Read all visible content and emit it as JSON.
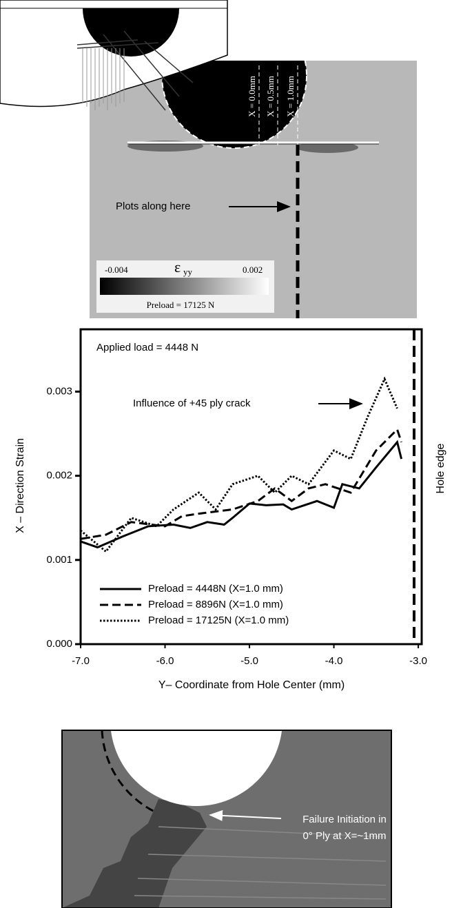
{
  "top_panel": {
    "x_labels": [
      "X = 0.0mm",
      "X = 0.5mm",
      "X = 1.0mm"
    ],
    "arrow_label": "Plots along here",
    "colorbar_min": "-0.004",
    "colorbar_symbol": "ε",
    "colorbar_subscript": "yy",
    "colorbar_max": "0.002",
    "preload": "Preload = 17125 N"
  },
  "chart_data": {
    "type": "line",
    "annotations": [
      "Applied load = 4448 N",
      "Influence of +45 ply crack"
    ],
    "x_label": "Y– Coordinate from Hole Center (mm)",
    "y_label": "X – Direction Strain",
    "xlim": [
      -7.0,
      -2.96
    ],
    "ylim": [
      0,
      0.00374
    ],
    "xticks": [
      {
        "value": -7,
        "label": "-7.0"
      },
      {
        "value": -6,
        "label": "-6.0"
      },
      {
        "value": -5,
        "label": "-5.0"
      },
      {
        "value": -4,
        "label": "-4.0"
      },
      {
        "value": -3,
        "label": "-3.0"
      }
    ],
    "yticks": [
      {
        "value": 0,
        "label": "0.000"
      },
      0.001,
      0.002,
      0.003
    ],
    "hole_edge": {
      "x": -3.05,
      "label": "Hole edge"
    },
    "series": [
      {
        "name": "Preload = 4448N (X=1.0 mm)",
        "color": "#000000",
        "line_style": "solid",
        "x": [
          -7.0,
          -6.8,
          -6.5,
          -6.2,
          -5.9,
          -5.7,
          -5.5,
          -5.3,
          -5.2,
          -5.0,
          -4.8,
          -4.6,
          -4.5,
          -4.2,
          -4.0,
          -3.9,
          -3.7,
          -3.5,
          -3.25,
          -3.2
        ],
        "values": [
          0.00122,
          0.00115,
          0.00128,
          0.0014,
          0.00142,
          0.00138,
          0.00145,
          0.00142,
          0.0015,
          0.00167,
          0.00165,
          0.00166,
          0.0016,
          0.0017,
          0.00162,
          0.0019,
          0.00185,
          0.0021,
          0.0024,
          0.0022
        ]
      },
      {
        "name": "Preload = 8896N (X=1.0 mm)",
        "color": "#000000",
        "line_style": "dashed",
        "x": [
          -7.0,
          -6.7,
          -6.4,
          -6.0,
          -5.8,
          -5.6,
          -5.2,
          -4.9,
          -4.7,
          -4.5,
          -4.3,
          -4.1,
          -3.8,
          -3.5,
          -3.25,
          -3.2
        ],
        "values": [
          0.00125,
          0.0013,
          0.00145,
          0.0014,
          0.00152,
          0.00155,
          0.0016,
          0.0017,
          0.00185,
          0.0017,
          0.00185,
          0.0019,
          0.0018,
          0.0023,
          0.00255,
          0.0024
        ]
      },
      {
        "name": "Preload = 17125N (X=1.0 mm)",
        "color": "#000000",
        "line_style": "dotted",
        "x": [
          -7.0,
          -6.7,
          -6.4,
          -6.1,
          -5.9,
          -5.6,
          -5.4,
          -5.2,
          -4.9,
          -4.7,
          -4.5,
          -4.3,
          -4.0,
          -3.8,
          -3.6,
          -3.4,
          -3.25
        ],
        "values": [
          0.00135,
          0.0011,
          0.0015,
          0.0014,
          0.0016,
          0.0018,
          0.0016,
          0.0019,
          0.002,
          0.0018,
          0.002,
          0.0019,
          0.0023,
          0.0022,
          0.0027,
          0.00315,
          0.0028
        ]
      }
    ]
  },
  "bottom_panel": {
    "annotation": [
      "Failure Initiation in",
      "0° Ply at X=~1mm"
    ]
  }
}
